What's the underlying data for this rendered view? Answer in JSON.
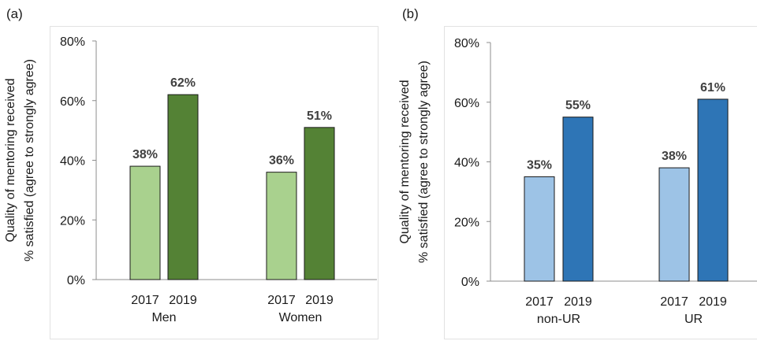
{
  "chart_data": [
    {
      "panel": "(a)",
      "type": "bar",
      "ylabel_lines": [
        "Quality of mentoring received",
        "% satisfied (agree to strongly agree)"
      ],
      "ylim": [
        0,
        80
      ],
      "yticks": [
        0,
        20,
        40,
        60,
        80
      ],
      "ytick_labels": [
        "0%",
        "20%",
        "40%",
        "60%",
        "80%"
      ],
      "groups": [
        "Men",
        "Women"
      ],
      "series": [
        {
          "name": "2017",
          "color": "#a9d18e",
          "values": [
            38,
            36
          ],
          "labels": [
            "38%",
            "36%"
          ]
        },
        {
          "name": "2019",
          "color": "#548235",
          "values": [
            62,
            51
          ],
          "labels": [
            "62%",
            "51%"
          ]
        }
      ],
      "legend": "none",
      "grid": false
    },
    {
      "panel": "(b)",
      "type": "bar",
      "ylabel_lines": [
        "Quality of mentoring received",
        "% satisfied (agree to strongly agree)"
      ],
      "ylim": [
        0,
        80
      ],
      "yticks": [
        0,
        20,
        40,
        60,
        80
      ],
      "ytick_labels": [
        "0%",
        "20%",
        "40%",
        "60%",
        "80%"
      ],
      "groups": [
        "non-UR",
        "UR"
      ],
      "series": [
        {
          "name": "2017",
          "color": "#9dc3e6",
          "values": [
            35,
            38
          ],
          "labels": [
            "35%",
            "38%"
          ]
        },
        {
          "name": "2019",
          "color": "#2e75b6",
          "values": [
            55,
            61
          ],
          "labels": [
            "55%",
            "61%"
          ]
        }
      ],
      "legend": "none",
      "grid": false
    }
  ]
}
